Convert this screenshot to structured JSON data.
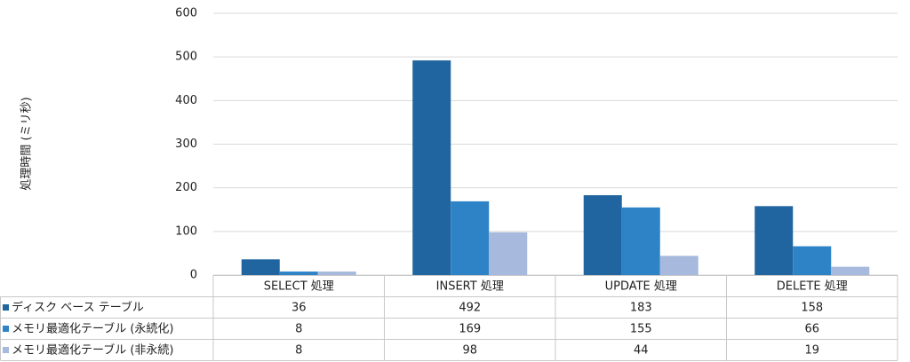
{
  "chart_data": {
    "type": "bar",
    "y_label": "処理時間 (ミリ秒)",
    "categories": [
      "SELECT 処理",
      "INSERT 処理",
      "UPDATE 処理",
      "DELETE 処理"
    ],
    "series": [
      {
        "name": "ディスク ベース テーブル",
        "color": "#20659f",
        "values": [
          36,
          492,
          183,
          158
        ]
      },
      {
        "name": "メモリ最適化テーブル (永続化)",
        "color": "#2e83c6",
        "values": [
          8,
          169,
          155,
          66
        ]
      },
      {
        "name": "メモリ最適化テーブル (非永続)",
        "color": "#a7b9dc",
        "values": [
          8,
          98,
          44,
          19
        ]
      }
    ],
    "ylim": [
      0,
      600
    ],
    "yticks": [
      0,
      100,
      200,
      300,
      400,
      500,
      600
    ],
    "grid": true
  }
}
